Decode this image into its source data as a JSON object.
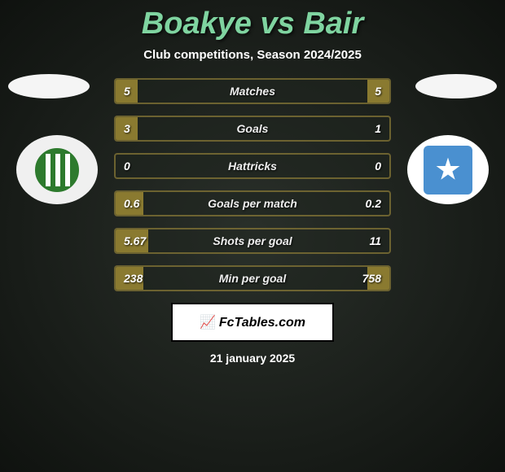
{
  "title": "Boakye vs Bair",
  "subtitle": "Club competitions, Season 2024/2025",
  "date": "21 january 2025",
  "footer_brand": "FcTables.com",
  "colors": {
    "title": "#7fd4a0",
    "bar_fill": "#8a7a30",
    "bar_border": "rgba(160, 140, 60, 0.6)",
    "left_badge": "#2d7a2d",
    "right_badge": "#4a90d0",
    "background_center": "#2a302a",
    "background_edge": "#0f120f"
  },
  "stats": [
    {
      "label": "Matches",
      "left_val": "5",
      "right_val": "5",
      "left_pct": 8,
      "right_pct": 8
    },
    {
      "label": "Goals",
      "left_val": "3",
      "right_val": "1",
      "left_pct": 8,
      "right_pct": 0
    },
    {
      "label": "Hattricks",
      "left_val": "0",
      "right_val": "0",
      "left_pct": 0,
      "right_pct": 0
    },
    {
      "label": "Goals per match",
      "left_val": "0.6",
      "right_val": "0.2",
      "left_pct": 10,
      "right_pct": 0
    },
    {
      "label": "Shots per goal",
      "left_val": "5.67",
      "right_val": "11",
      "left_pct": 12,
      "right_pct": 0
    },
    {
      "label": "Min per goal",
      "left_val": "238",
      "right_val": "758",
      "left_pct": 10,
      "right_pct": 8
    }
  ]
}
